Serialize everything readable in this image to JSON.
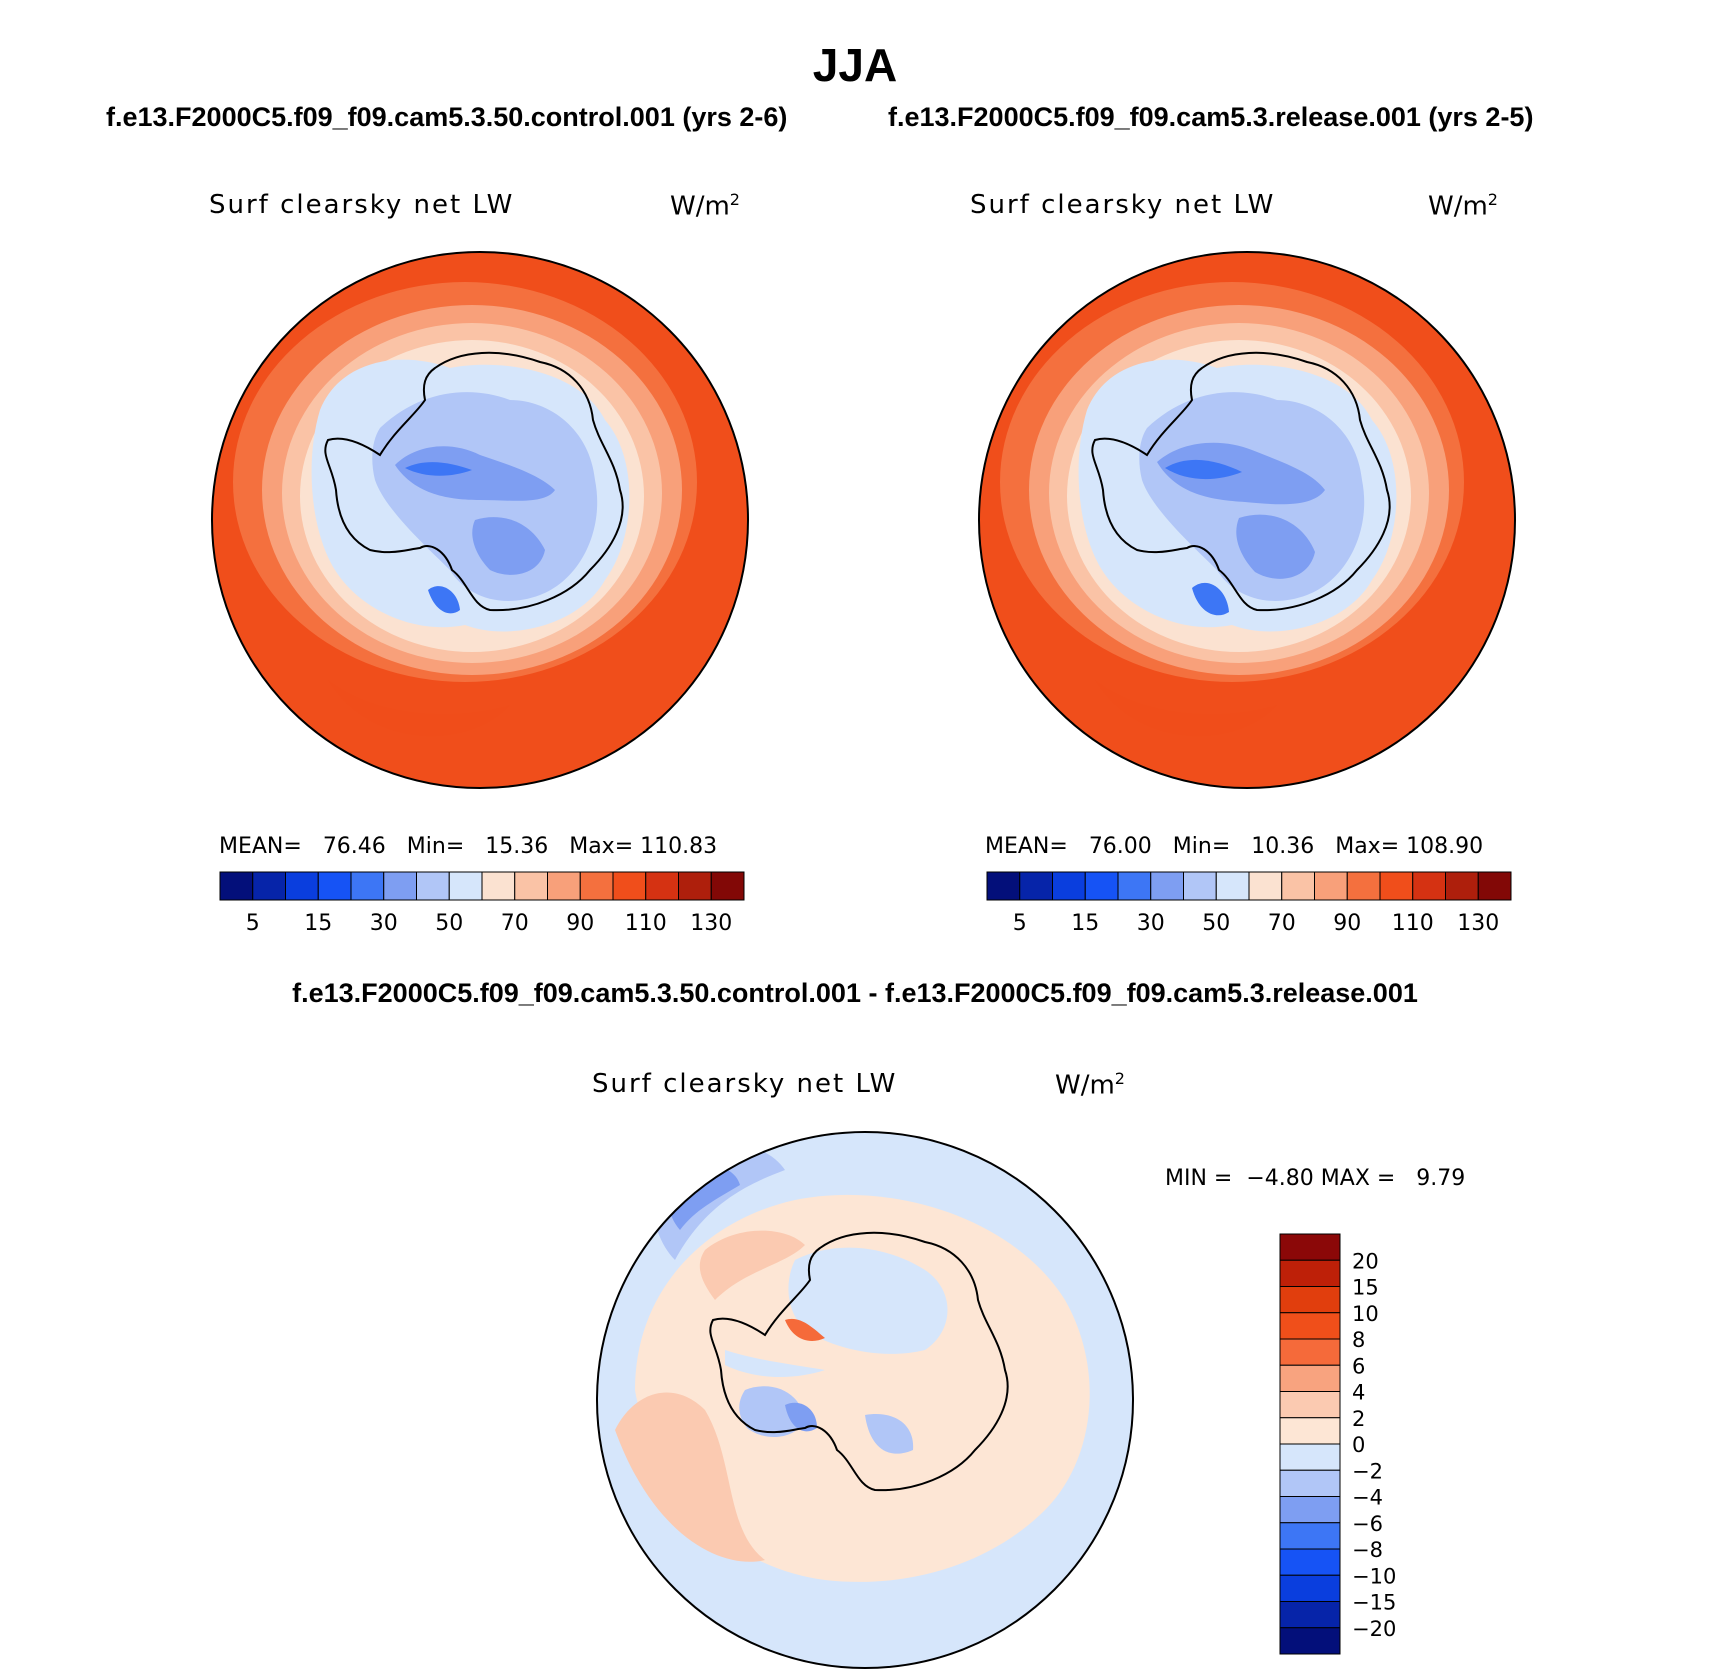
{
  "title": "JJA",
  "panels": [
    {
      "case_title": "f.e13.F2000C5.f09_f09.cam5.3.50.control.001 (yrs 2-6)",
      "variable_label": "Surf clearsky net LW",
      "units_base": "W/m",
      "units_exp": "2",
      "mean_label": "MEAN=",
      "mean_value": "76.46",
      "min_label": "Min=",
      "min_value": "15.36",
      "max_label": "Max=",
      "max_value": "110.83"
    },
    {
      "case_title": "f.e13.F2000C5.f09_f09.cam5.3.release.001 (yrs 2-5)",
      "variable_label": "Surf clearsky net LW",
      "units_base": "W/m",
      "units_exp": "2",
      "mean_label": "MEAN=",
      "mean_value": "76.00",
      "min_label": "Min=",
      "min_value": "10.36",
      "max_label": "Max=",
      "max_value": "108.90"
    }
  ],
  "diff_panel": {
    "title": "f.e13.F2000C5.f09_f09.cam5.3.50.control.001 - f.e13.F2000C5.f09_f09.cam5.3.release.001",
    "variable_label": "Surf clearsky net LW",
    "units_base": "W/m",
    "units_exp": "2",
    "min_label": "MIN =",
    "min_value": "−4.80",
    "max_label": "MAX =",
    "max_value": "9.79"
  },
  "colorbar_main": {
    "colors": [
      "#030f7a",
      "#0624a9",
      "#0a3ede",
      "#1653f5",
      "#3d76f5",
      "#7e9ef2",
      "#b1c6f7",
      "#d6e6fb",
      "#fbe2d1",
      "#fac3a6",
      "#f8a07a",
      "#f4703e",
      "#f04e1b",
      "#d53212",
      "#ae1f0c",
      "#820806"
    ],
    "tick_labels": [
      "5",
      "15",
      "30",
      "50",
      "70",
      "90",
      "110",
      "130"
    ]
  },
  "colorbar_diff": {
    "colors_top_to_bottom": [
      "#8b0808",
      "#be2008",
      "#e13e0d",
      "#f04f1a",
      "#f56a3a",
      "#f8a37f",
      "#fbcab1",
      "#fde6d5",
      "#d6e6fb",
      "#b1c6f7",
      "#7e9ef2",
      "#3d76f5",
      "#1653f5",
      "#0a3ede",
      "#0624a9",
      "#030f7a"
    ],
    "tick_labels_top_to_bottom": [
      "20",
      "15",
      "10",
      "8",
      "6",
      "4",
      "2",
      "0",
      "−2",
      "−4",
      "−6",
      "−8",
      "−10",
      "−15",
      "−20"
    ]
  },
  "chart_data": [
    {
      "type": "heatmap",
      "title": "Surf clearsky net LW",
      "units": "W/m2",
      "projection": "south polar stereographic",
      "levels": [
        5,
        10,
        15,
        20,
        30,
        40,
        50,
        60,
        70,
        80,
        90,
        100,
        110,
        120,
        130
      ],
      "mean": 76.46,
      "min": 15.36,
      "max": 110.83
    },
    {
      "type": "heatmap",
      "title": "Surf clearsky net LW",
      "units": "W/m2",
      "projection": "south polar stereographic",
      "levels": [
        5,
        10,
        15,
        20,
        30,
        40,
        50,
        60,
        70,
        80,
        90,
        100,
        110,
        120,
        130
      ],
      "mean": 76.0,
      "min": 10.36,
      "max": 108.9
    },
    {
      "type": "heatmap",
      "title": "Surf clearsky net LW (difference)",
      "units": "W/m2",
      "projection": "south polar stereographic",
      "levels": [
        -20,
        -15,
        -10,
        -8,
        -6,
        -4,
        -2,
        0,
        2,
        4,
        6,
        8,
        10,
        15,
        20
      ],
      "min": -4.8,
      "max": 9.79
    }
  ]
}
